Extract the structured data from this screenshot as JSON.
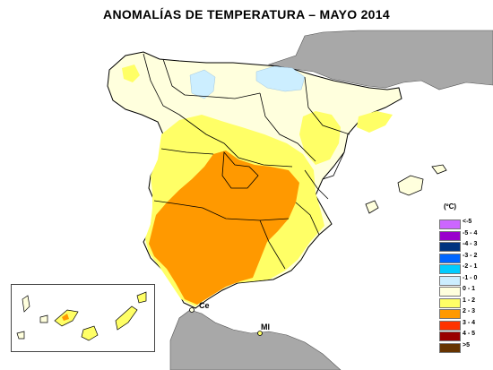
{
  "title": "ANOMALÍAS DE TEMPERATURA  – MAYO 2014",
  "legend": {
    "unit": "(ºC)",
    "classes": [
      {
        "label": "<-5",
        "color": "#cc66ff"
      },
      {
        "label": "-5 - 4",
        "color": "#9900cc"
      },
      {
        "label": "-4 - 3",
        "color": "#00337f"
      },
      {
        "label": "-3 - 2",
        "color": "#0066ff"
      },
      {
        "label": "-2 - 1",
        "color": "#00ccff"
      },
      {
        "label": "-1 - 0",
        "color": "#cceeff"
      },
      {
        "label": "0 - 1",
        "color": "#ffffdd"
      },
      {
        "label": "1 - 2",
        "color": "#ffff66"
      },
      {
        "label": "2 - 3",
        "color": "#ff9900"
      },
      {
        "label": "3 - 4",
        "color": "#ff3300"
      },
      {
        "label": "4 - 5",
        "color": "#990000"
      },
      {
        "label": ">5",
        "color": "#663300"
      }
    ]
  },
  "places": {
    "ceuta": "Ce",
    "melilla": "Ml"
  },
  "colors": {
    "land_outside": "#a8a8a8",
    "sea": "#ffffff",
    "border": "#000000"
  }
}
